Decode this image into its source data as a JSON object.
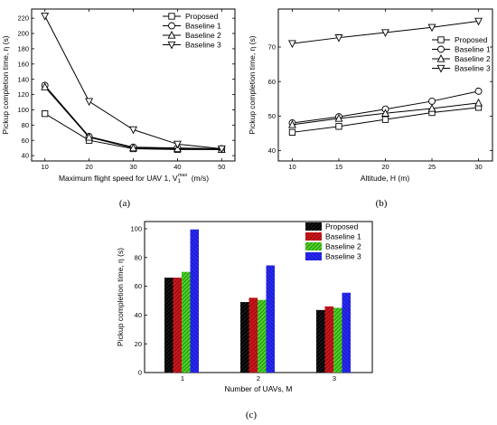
{
  "chart_data": [
    {
      "id": "a",
      "type": "line",
      "caption": "(a)",
      "xlabel": "Maximum flight speed for UAV 1, V",
      "xlabel_sub": "1",
      "xlabel_sup": "max",
      "xlabel_unit": "(m/s)",
      "ylabel": "Pickup completion time, η (s)",
      "x": [
        10,
        20,
        30,
        40,
        50
      ],
      "xticks": [
        10,
        20,
        30,
        40,
        50
      ],
      "xlim": [
        7,
        53
      ],
      "yticks": [
        40,
        60,
        80,
        100,
        120,
        140,
        160,
        180,
        200,
        220
      ],
      "ylim": [
        33,
        232
      ],
      "legend_position": "top-right",
      "series": [
        {
          "name": "Proposed",
          "marker": "square",
          "values": [
            95,
            60,
            49,
            48,
            48
          ]
        },
        {
          "name": "Baseline 1",
          "marker": "circle",
          "values": [
            132,
            65,
            51,
            50,
            49
          ]
        },
        {
          "name": "Baseline 2",
          "marker": "triangle-up",
          "values": [
            130,
            64,
            50,
            49,
            48
          ]
        },
        {
          "name": "Baseline 3",
          "marker": "triangle-down",
          "values": [
            223,
            111,
            74,
            55,
            49
          ]
        }
      ]
    },
    {
      "id": "b",
      "type": "line",
      "caption": "(b)",
      "xlabel": "Altitude, H (m)",
      "ylabel": "Pickup completion time, η (s)",
      "x": [
        10,
        15,
        20,
        25,
        30
      ],
      "xticks": [
        10,
        15,
        20,
        25,
        30
      ],
      "xlim": [
        8.5,
        31.5
      ],
      "yticks": [
        40,
        50,
        60,
        70
      ],
      "ylim": [
        37,
        81
      ],
      "legend_position": "right",
      "series": [
        {
          "name": "Proposed",
          "marker": "square",
          "values": [
            45.3,
            47,
            49,
            51,
            52.5
          ]
        },
        {
          "name": "Baseline 1",
          "marker": "circle",
          "values": [
            48,
            49.8,
            52,
            54.3,
            57.2
          ]
        },
        {
          "name": "Baseline 2",
          "marker": "triangle-up",
          "values": [
            47.5,
            49.3,
            50.8,
            52.2,
            53.8
          ]
        },
        {
          "name": "Baseline 3",
          "marker": "triangle-down",
          "values": [
            71,
            72.7,
            74.2,
            75.7,
            77.5
          ]
        }
      ]
    },
    {
      "id": "c",
      "type": "bar",
      "caption": "(c)",
      "xlabel": "Number of UAVs, M",
      "ylabel": "Pickup completion time, η (s)",
      "categories": [
        "1",
        "2",
        "3"
      ],
      "yticks": [
        0,
        20,
        40,
        60,
        80,
        100
      ],
      "ylim": [
        0,
        105
      ],
      "legend_position": "top-right",
      "series": [
        {
          "name": "Proposed",
          "color": "#000000",
          "values": [
            66,
            49,
            43.5
          ]
        },
        {
          "name": "Baseline 1",
          "color": "#d0141c",
          "values": [
            66,
            52,
            46
          ]
        },
        {
          "name": "Baseline 2",
          "color": "#20b020",
          "values": [
            70,
            50.5,
            45
          ]
        },
        {
          "name": "Baseline 3",
          "color": "#1c1ce0",
          "values": [
            99.5,
            74.5,
            55.5
          ]
        }
      ]
    }
  ]
}
